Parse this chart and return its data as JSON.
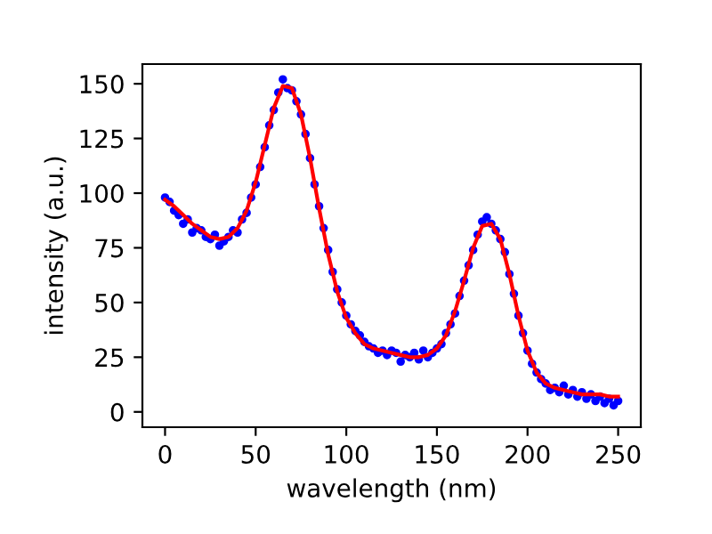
{
  "chart_data": {
    "type": "scatter",
    "xlabel": "wavelength (nm)",
    "ylabel": "intensity (a.u.)",
    "xlim": [
      -12.5,
      262.5
    ],
    "ylim": [
      -7,
      159
    ],
    "xticks": [
      0,
      50,
      100,
      150,
      200,
      250
    ],
    "yticks": [
      0,
      25,
      50,
      75,
      100,
      125,
      150
    ],
    "grid": false,
    "series": [
      {
        "marker": "circle",
        "color": "#0000ff",
        "x": [
          0,
          2.5,
          5,
          7.5,
          10,
          12.5,
          15,
          17.5,
          20,
          22.5,
          25,
          27.5,
          30,
          32.5,
          35,
          37.5,
          40,
          42.5,
          45,
          47.5,
          50,
          52.5,
          55,
          57.5,
          60,
          62.5,
          65,
          67.5,
          70,
          72.5,
          75,
          77.5,
          80,
          82.5,
          85,
          87.5,
          90,
          92.5,
          95,
          97.5,
          100,
          102.5,
          105,
          107.5,
          110,
          112.5,
          115,
          117.5,
          120,
          122.5,
          125,
          127.5,
          130,
          132.5,
          135,
          137.5,
          140,
          142.5,
          145,
          147.5,
          150,
          152.5,
          155,
          157.5,
          160,
          162.5,
          165,
          167.5,
          170,
          172.5,
          175,
          177.5,
          180,
          182.5,
          185,
          187.5,
          190,
          192.5,
          195,
          197.5,
          200,
          202.5,
          205,
          207.5,
          210,
          212.5,
          215,
          217.5,
          220,
          222.5,
          225,
          227.5,
          230,
          232.5,
          235,
          237.5,
          240,
          242.5,
          245,
          247.5,
          250
        ],
        "values": [
          98,
          96,
          92,
          90,
          86,
          88,
          82,
          84,
          83,
          80,
          79,
          81,
          76,
          78,
          80,
          83,
          82,
          88,
          91,
          98,
          104,
          112,
          121,
          131,
          138,
          146,
          152,
          148,
          147,
          142,
          136,
          127,
          116,
          104,
          94,
          84,
          74,
          64,
          56,
          50,
          44,
          40,
          37,
          35,
          32,
          30,
          29,
          27,
          28,
          26,
          28,
          27,
          23,
          26,
          25,
          27,
          24,
          28,
          25,
          27,
          29,
          31,
          36,
          40,
          45,
          53,
          60,
          67,
          74,
          81,
          87,
          89,
          86,
          83,
          79,
          73,
          63,
          54,
          44,
          36,
          28,
          22,
          18,
          15,
          13,
          10,
          11,
          9,
          12,
          8,
          10,
          7,
          9,
          6,
          8,
          5,
          7,
          4,
          6,
          3,
          5
        ]
      },
      {
        "type": "line",
        "marker": "none",
        "color": "#ff0000",
        "line_style": "solid",
        "x": [
          0,
          5,
          10,
          15,
          20,
          25,
          30,
          35,
          40,
          45,
          50,
          55,
          60,
          65,
          70,
          75,
          80,
          85,
          90,
          95,
          100,
          105,
          110,
          115,
          120,
          125,
          130,
          135,
          140,
          145,
          150,
          155,
          160,
          165,
          170,
          175,
          180,
          185,
          190,
          195,
          200,
          205,
          210,
          215,
          220,
          225,
          230,
          235,
          240,
          245,
          250
        ],
        "values": [
          97,
          94,
          90,
          86,
          83,
          80,
          79,
          80,
          84,
          92,
          105,
          122,
          139,
          149,
          148,
          136,
          116,
          93,
          72,
          55,
          43,
          36,
          31,
          29,
          28,
          27,
          26,
          25,
          25,
          26,
          29,
          35,
          46,
          60,
          75,
          85,
          86,
          79,
          63,
          44,
          28,
          18,
          13,
          11,
          10,
          9,
          8,
          8,
          8,
          7,
          7
        ]
      }
    ]
  }
}
